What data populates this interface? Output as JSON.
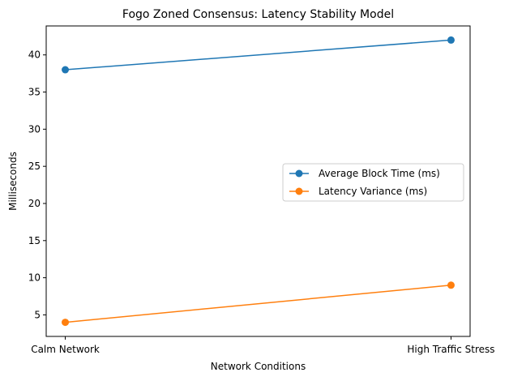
{
  "chart_data": {
    "type": "line",
    "title": "Fogo Zoned Consensus: Latency Stability Model",
    "xlabel": "Network Conditions",
    "ylabel": "Milliseconds",
    "categories": [
      "Calm Network",
      "High Traffic Stress"
    ],
    "yticks": [
      5,
      10,
      15,
      20,
      25,
      30,
      35,
      40
    ],
    "ylim": [
      2.1,
      43.9
    ],
    "grid": false,
    "legend_position": "center-right",
    "series": [
      {
        "name": "Average Block Time (ms)",
        "values": [
          38,
          42
        ],
        "color": "#1f77b4"
      },
      {
        "name": "Latency Variance (ms)",
        "values": [
          4,
          9
        ],
        "color": "#ff7f0e"
      }
    ]
  }
}
